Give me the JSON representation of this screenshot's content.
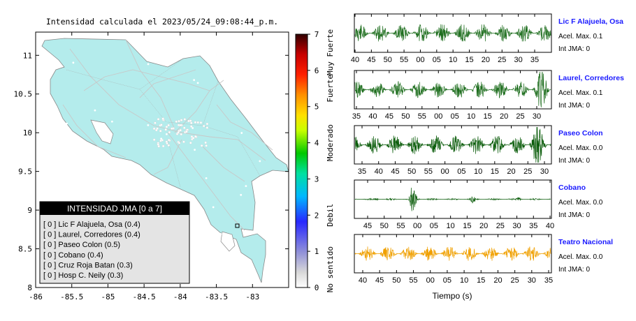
{
  "map": {
    "title": "Intensidad calculada el 2023/05/24_09:08:44_p.m.",
    "x_ticks": [
      "-86",
      "-85.5",
      "-85",
      "-84.5",
      "-84",
      "-83.5",
      "-83"
    ],
    "y_ticks": [
      "11",
      "10.5",
      "10",
      "9.5",
      "9",
      "8.5",
      "8"
    ],
    "xlim": [
      -86,
      -82.5
    ],
    "ylim": [
      8,
      11.3
    ],
    "land_color": "#b4ecec"
  },
  "colorbar": {
    "ticks": [
      "0",
      "1",
      "2",
      "3",
      "4",
      "5",
      "6",
      "7"
    ],
    "range": [
      0,
      7
    ],
    "labels": [
      "No sentido",
      "Debil",
      "Moderado",
      "Fuerte",
      "Muy Fuerte"
    ]
  },
  "legend": {
    "title": "INTENSIDAD JMA [0 a 7]",
    "items": [
      "[ 0 ]  Lic F Alajuela, Osa (0.4)",
      "[ 0 ]  Laurel, Corredores (0.4)",
      "[ 0 ]  Paseo Colon (0.5)",
      "[ 0 ]  Cobano (0.4)",
      "[ 0 ]  Cruz Roja Batan (0.3)",
      "[ 0 ]  Hosp C. Neily (0.3)"
    ]
  },
  "chart_data": {
    "type": "line",
    "xlabel": "Tiempo (s)",
    "series": [
      {
        "name": "Lic F Alajuela, Osa",
        "accel_label": "Acel. Max. 0.1",
        "int_label": "Int JMA: 0",
        "color": "#1e6e1e",
        "ticks": [
          "40",
          "45",
          "50",
          "55",
          "00",
          "05",
          "10",
          "15",
          "20",
          "25",
          "30",
          "35"
        ]
      },
      {
        "name": "Laurel, Corredores",
        "accel_label": "Acel. Max. 0.1",
        "int_label": "Int JMA: 0",
        "color": "#1e6e1e",
        "ticks": [
          "35",
          "40",
          "45",
          "50",
          "55",
          "00",
          "05",
          "10",
          "15",
          "20",
          "25",
          "30"
        ]
      },
      {
        "name": "Paseo Colon",
        "accel_label": "Acel. Max. 0.0",
        "int_label": "Int JMA: 0",
        "color": "#0d5e0d",
        "ticks": [
          "35",
          "40",
          "45",
          "50",
          "55",
          "00",
          "05",
          "10",
          "15",
          "20",
          "25",
          "30"
        ]
      },
      {
        "name": "Cobano",
        "accel_label": "Acel. Max. 0.0",
        "int_label": "Int JMA: 0",
        "color": "#0d5e0d",
        "ticks": [
          "45",
          "50",
          "55",
          "00",
          "05",
          "10",
          "15",
          "20",
          "25",
          "30",
          "35",
          "40"
        ]
      },
      {
        "name": "Teatro Nacional",
        "accel_label": "Acel. Max. 0.0",
        "int_label": "Int JMA: 0",
        "color": "#f0a000",
        "ticks": [
          "40",
          "45",
          "50",
          "55",
          "00",
          "05",
          "10",
          "15",
          "20",
          "25",
          "30",
          "35"
        ]
      }
    ]
  }
}
